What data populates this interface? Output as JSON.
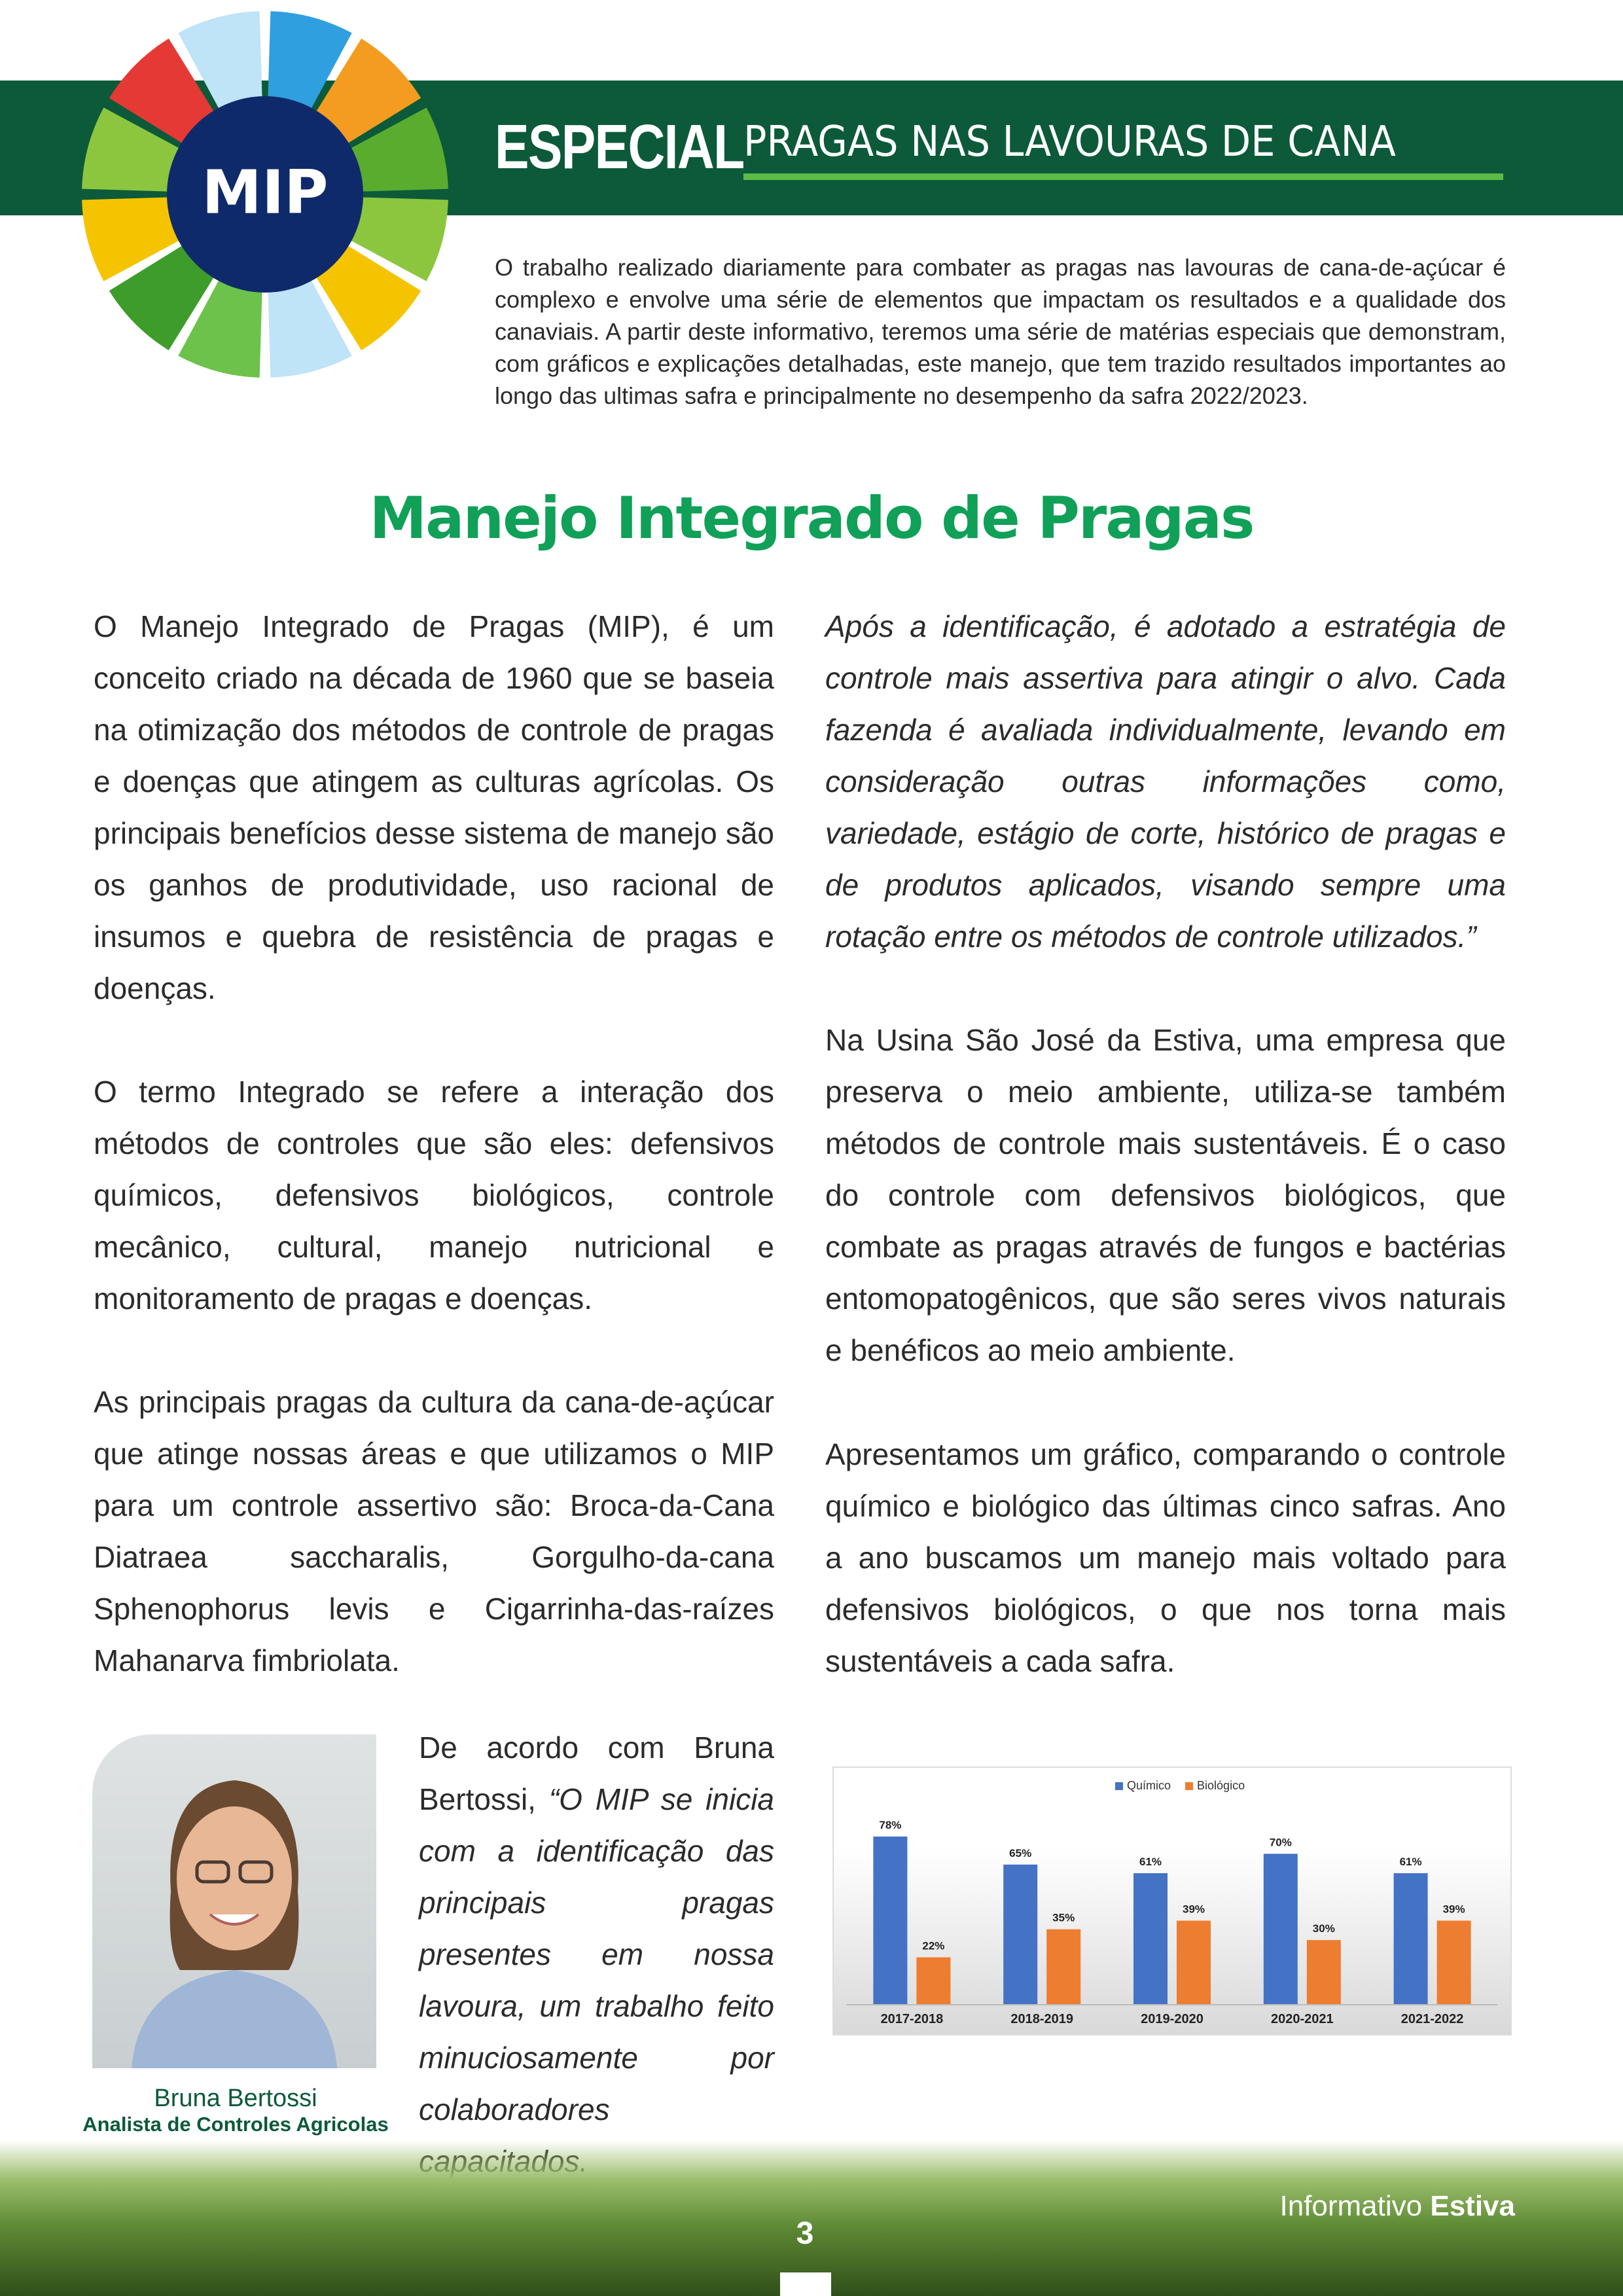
{
  "logo": {
    "label": "MIP"
  },
  "header": {
    "kicker": "ESPECIAL",
    "title": "PRAGAS NAS LAVOURAS DE CANA"
  },
  "intro": "O trabalho realizado diariamente para combater as pragas nas lavouras de cana-de-açúcar é complexo e envolve uma série de elementos que impactam os resultados e a qualidade dos canaviais. A partir deste informativo, teremos uma série de matérias especiais que demonstram, com gráficos e explicações detalhadas, este manejo, que tem trazido resultados importantes ao longo das ultimas safra e principalmente no desempenho da safra 2022/2023.",
  "article": {
    "title": "Manejo Integrado de Pragas",
    "left": [
      "O Manejo Integrado de Pragas (MIP), é um conceito criado na década de 1960 que se baseia na otimização dos métodos de controle de pragas e doenças que atingem as culturas agrícolas. Os principais benefícios desse sistema de manejo são os ganhos de produtividade, uso racional de insumos e quebra de resistência de pragas e doenças.",
      "O termo Integrado se refere a interação dos métodos de controles que são eles: defensivos químicos, defensivos biológicos, controle mecânico, cultural, manejo nutricional e monitoramento de pragas e doenças.",
      "As principais pragas da cultura da cana-de-açúcar que atinge nossas áreas e que utilizamos o MIP para um controle assertivo são: Broca-da-Cana Diatraea saccharalis, Gorgulho-da-cana Sphenophorus levis e Cigarrinha-das-raízes Mahanarva fimbriolata."
    ],
    "quote_intro": "De acordo com Bruna Bertossi,",
    "quote": "“O MIP se inicia com a identificação das principais pragas presentes em nossa lavoura, um trabalho feito minuciosamente por colaboradores capacitados.",
    "right": [
      "Após a identificação, é adotado a estratégia de controle mais assertiva para atingir o alvo. Cada fazenda é avaliada individualmente, levando em consideração outras informações como, variedade, estágio de corte, histórico de pragas e de produtos aplicados, visando sempre uma rotação entre os métodos de controle utilizados.”",
      "Na Usina São José da Estiva, uma empresa que preserva o meio ambiente, utiliza-se também métodos de controle mais sustentáveis. É o caso do controle com defensivos biológicos, que combate as pragas através de fungos e bactérias entomopatogênicos, que são seres vivos naturais e benéficos ao meio ambiente.",
      "Apresentamos um gráfico, comparando o controle químico e biológico das últimas cinco safras. Ano a ano buscamos um manejo mais voltado para defensivos biológicos, o que nos torna mais sustentáveis a cada safra."
    ]
  },
  "person": {
    "name": "Bruna Bertossi",
    "role": "Analista de Controles Agricolas"
  },
  "chart_data": {
    "type": "bar",
    "categories": [
      "2017-2018",
      "2018-2019",
      "2019-2020",
      "2020-2021",
      "2021-2022"
    ],
    "series": [
      {
        "name": "Químico",
        "color": "#4472c4",
        "values": [
          78,
          65,
          61,
          70,
          61
        ],
        "value_labels": [
          "78%",
          "65%",
          "61%",
          "70%",
          "61%"
        ]
      },
      {
        "name": "Biológico",
        "color": "#ed7d31",
        "values": [
          22,
          35,
          39,
          30,
          39
        ],
        "value_labels": [
          "22%",
          "35%",
          "39%",
          "30%",
          "39%"
        ]
      }
    ],
    "legend": "top"
  },
  "footer": {
    "brand_prefix": "Informativo",
    "brand_name": "Estiva",
    "page_number": "3"
  }
}
